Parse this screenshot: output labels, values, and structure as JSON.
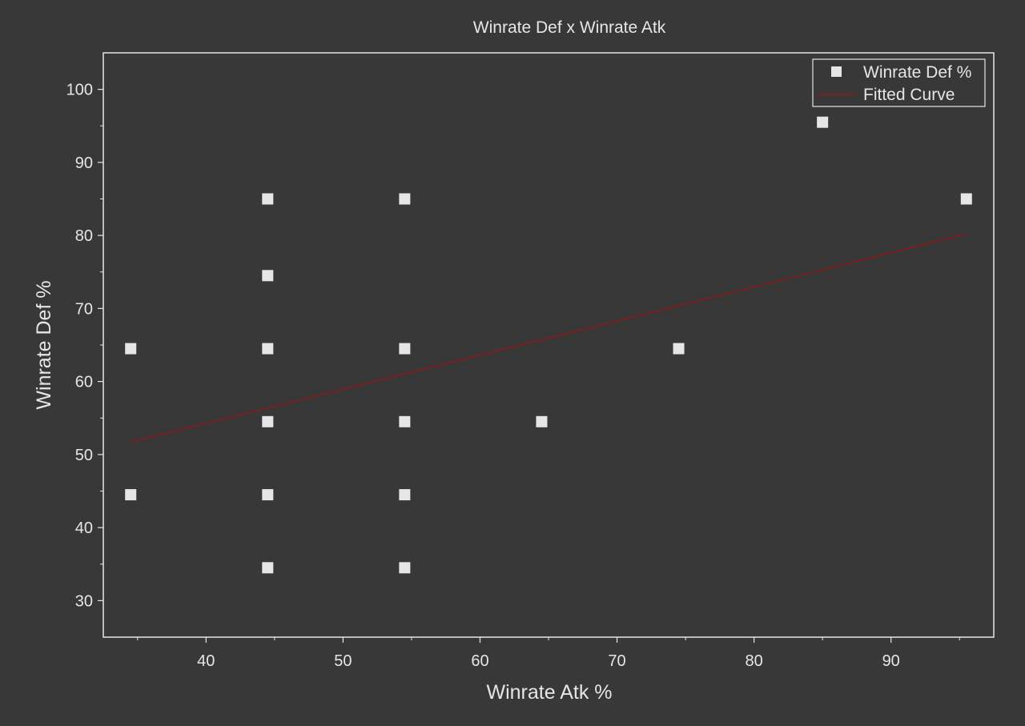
{
  "colors": {
    "background": "#383838",
    "foreground": "#e6e6e6",
    "marker": "#e6e6e6",
    "fit_line": "#8b1a1a"
  },
  "chart_data": {
    "type": "scatter",
    "title": "Winrate Def x Winrate Atk",
    "xlabel": "Winrate Atk %",
    "ylabel": "Winrate Def %",
    "xlim": [
      32.5,
      97.5
    ],
    "ylim": [
      25,
      105
    ],
    "xticks": [
      40,
      50,
      60,
      70,
      80,
      90
    ],
    "yticks": [
      30,
      40,
      50,
      60,
      70,
      80,
      90,
      100
    ],
    "grid": false,
    "legend_position": "top-right",
    "series": [
      {
        "name": "Winrate Def %",
        "kind": "scatter",
        "x": [
          34.5,
          34.5,
          44.5,
          44.5,
          44.5,
          44.5,
          44.5,
          44.5,
          54.5,
          54.5,
          54.5,
          54.5,
          54.5,
          64.5,
          74.5,
          85,
          95.5
        ],
        "y": [
          64.5,
          44.5,
          85,
          74.5,
          64.5,
          54.5,
          44.5,
          34.5,
          85,
          64.5,
          54.5,
          44.5,
          34.5,
          54.5,
          64.5,
          95.5,
          85
        ]
      },
      {
        "name": "Fitted Curve",
        "kind": "line",
        "x": [
          34.5,
          95.5
        ],
        "y": [
          51.7,
          80.2
        ]
      }
    ]
  }
}
